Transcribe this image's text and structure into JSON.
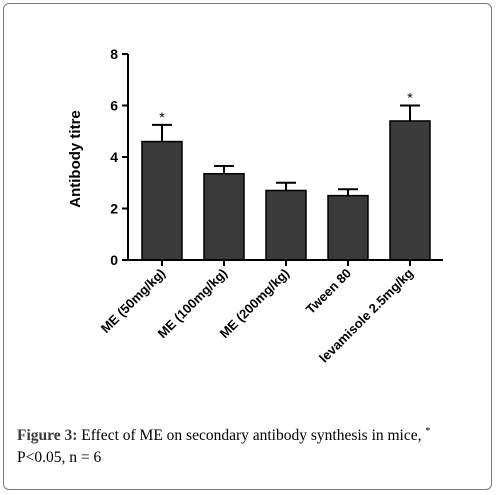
{
  "chart_data": {
    "type": "bar",
    "title": "",
    "xlabel": "",
    "ylabel": "Antibody titre",
    "ylim": [
      0,
      8
    ],
    "yticks": [
      0,
      2,
      4,
      6,
      8
    ],
    "grid": false,
    "categories": [
      "ME (50mg/kg)",
      "ME (100mg/kg)",
      "ME (200mg/kg)",
      "Tween 80",
      "levamisole 2.5mg/kg"
    ],
    "values": [
      4.6,
      3.35,
      2.7,
      2.5,
      5.4
    ],
    "errors": [
      0.65,
      0.3,
      0.3,
      0.25,
      0.6
    ],
    "annotations": [
      "*",
      "",
      "",
      "",
      "*"
    ],
    "bar_color": "#3a3a3a"
  },
  "caption": {
    "label": "Figure 3:",
    "text": "Effect of ME on secondary antibody synthesis in mice,",
    "star": "*",
    "stats": "P<0.05, n = 6"
  }
}
